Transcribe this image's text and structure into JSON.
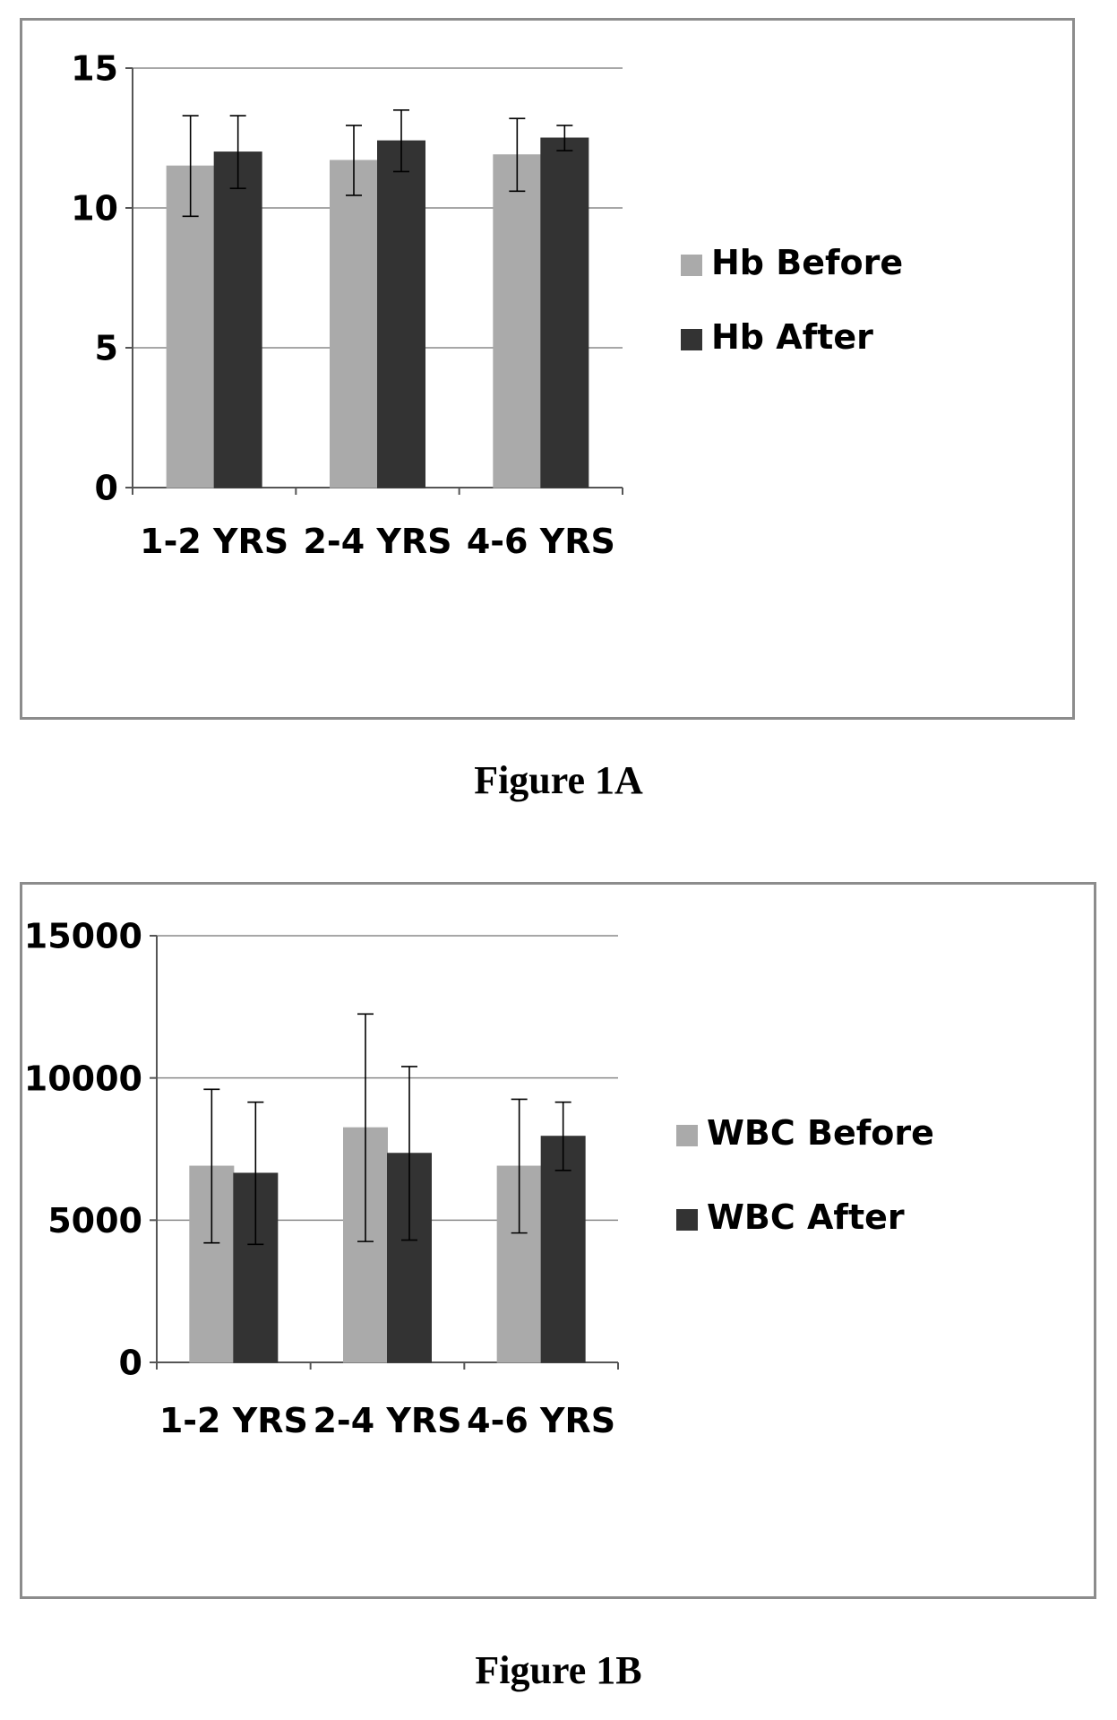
{
  "chart_data": [
    {
      "type": "bar",
      "caption": "Figure 1A",
      "categories": [
        "1-2 YRS",
        "2-4 YRS",
        "4-6 YRS"
      ],
      "series": [
        {
          "name": "Hb Before",
          "values": [
            11.5,
            11.7,
            11.9
          ],
          "error": [
            1.8,
            1.25,
            1.3
          ]
        },
        {
          "name": "Hb After",
          "values": [
            12.0,
            12.4,
            12.5
          ],
          "error": [
            1.3,
            1.1,
            0.45
          ]
        }
      ],
      "ylim": [
        0,
        15
      ],
      "yticks": [
        0,
        5,
        10,
        15
      ],
      "ytick_labels": [
        "0",
        "5",
        "10",
        "15"
      ],
      "grid": true,
      "legend": "right",
      "colors": [
        "#aaaaaa",
        "#333333"
      ]
    },
    {
      "type": "bar",
      "caption": "Figure 1B",
      "categories": [
        "1-2 YRS",
        "2-4 YRS",
        "4-6 YRS"
      ],
      "series": [
        {
          "name": "WBC Before",
          "values": [
            6900,
            8250,
            6900
          ],
          "error": [
            2700,
            4000,
            2350
          ]
        },
        {
          "name": "WBC After",
          "values": [
            6650,
            7350,
            7950
          ],
          "error": [
            2500,
            3050,
            1200
          ]
        }
      ],
      "ylim": [
        0,
        15000
      ],
      "yticks": [
        0,
        5000,
        10000,
        15000
      ],
      "ytick_labels": [
        "0",
        "5000",
        "10000",
        "15000"
      ],
      "grid": true,
      "legend": "right",
      "colors": [
        "#aaaaaa",
        "#333333"
      ]
    }
  ]
}
